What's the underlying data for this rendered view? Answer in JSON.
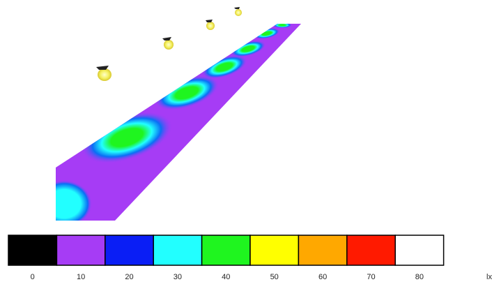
{
  "legend": {
    "items": [
      {
        "value": 0,
        "color": "#000000"
      },
      {
        "value": 10,
        "color": "#a63cf5"
      },
      {
        "value": 20,
        "color": "#0a1ef5"
      },
      {
        "value": 30,
        "color": "#22ffff"
      },
      {
        "value": 40,
        "color": "#1ff51f"
      },
      {
        "value": 50,
        "color": "#ffff00"
      },
      {
        "value": 60,
        "color": "#ffa800"
      },
      {
        "value": 70,
        "color": "#ff1a00"
      },
      {
        "value": 80,
        "color": "#ffffff"
      }
    ],
    "unit": "lx"
  }
}
